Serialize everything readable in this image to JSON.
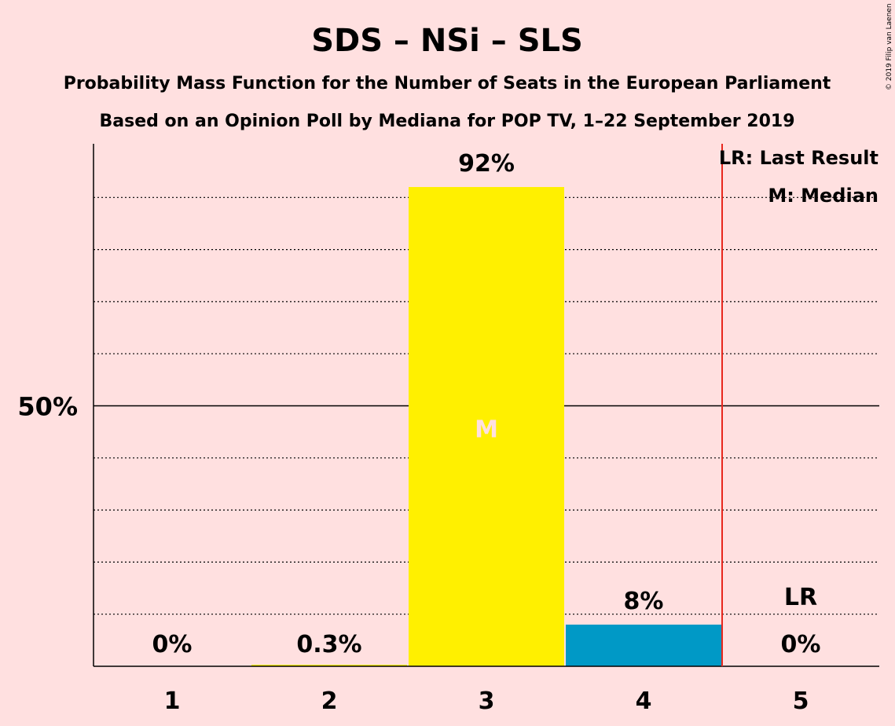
{
  "chart_data": {
    "type": "bar",
    "title": "SDS – NSi – SLS",
    "subtitle_lines": [
      "Probability Mass Function for the Number of Seats in the European Parliament",
      "Based on an Opinion Poll by Mediana for POP TV, 1–22 September 2019"
    ],
    "copyright": "© 2019 Filip van Laenen",
    "categories": [
      "1",
      "2",
      "3",
      "4",
      "5"
    ],
    "values": [
      0,
      0.3,
      92,
      8,
      0
    ],
    "value_labels": [
      "0%",
      "0.3%",
      "92%",
      "8%",
      "0%"
    ],
    "bar_colors": [
      "#FFF000",
      "#FFF000",
      "#FFF000",
      "#0099C6",
      "#0099C6"
    ],
    "ylim": [
      0,
      100
    ],
    "y_tick_label": "50%",
    "y_tick_value": 50,
    "gridlines_dotted": [
      10,
      20,
      30,
      40,
      60,
      70,
      80,
      90
    ],
    "median_category": "3",
    "median_mark": "M",
    "last_result_category": "5",
    "last_result_mark": "LR",
    "last_result_line_color": "#E8281E",
    "legend": [
      "LR: Last Result",
      "M: Median"
    ]
  }
}
